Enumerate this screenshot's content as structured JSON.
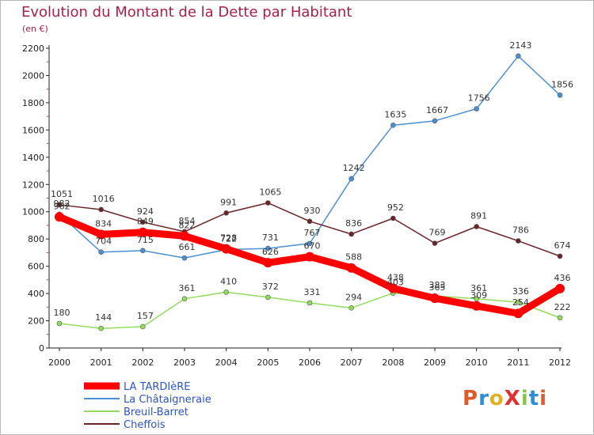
{
  "title": "Evolution du Montant de la Dette par Habitant",
  "unit": "(en €)",
  "logo": "ProXiti",
  "chart_data": {
    "type": "line",
    "x": [
      "2000",
      "2001",
      "2002",
      "2003",
      "2004",
      "2005",
      "2006",
      "2007",
      "2008",
      "2009",
      "2010",
      "2011",
      "2012"
    ],
    "ylim": [
      0,
      2200
    ],
    "yticks": [
      0,
      200,
      400,
      600,
      800,
      1000,
      1200,
      1400,
      1600,
      1800,
      2000,
      2200
    ],
    "grid": false,
    "legend_position": "bottom-left",
    "series": [
      {
        "name": "LA TARDIèRE",
        "values": [
          962,
          834,
          849,
          822,
          728,
          626,
          670,
          588,
          438,
          365,
          309,
          254,
          436
        ],
        "color": "#ff0000"
      },
      {
        "name": "La Châtaigneraie",
        "values": [
          982,
          704,
          715,
          661,
          722,
          731,
          767,
          1242,
          1635,
          1667,
          1756,
          2143,
          1856
        ],
        "color": "#4b8fd4"
      },
      {
        "name": "Breuil-Barret",
        "values": [
          180,
          144,
          157,
          361,
          410,
          372,
          331,
          294,
          403,
          383,
          361,
          336,
          222
        ],
        "color": "#92dc5c"
      },
      {
        "name": "Cheffois",
        "values": [
          1051,
          1016,
          924,
          854,
          991,
          1065,
          930,
          836,
          952,
          769,
          891,
          786,
          674
        ],
        "color": "#6b2328"
      }
    ]
  }
}
